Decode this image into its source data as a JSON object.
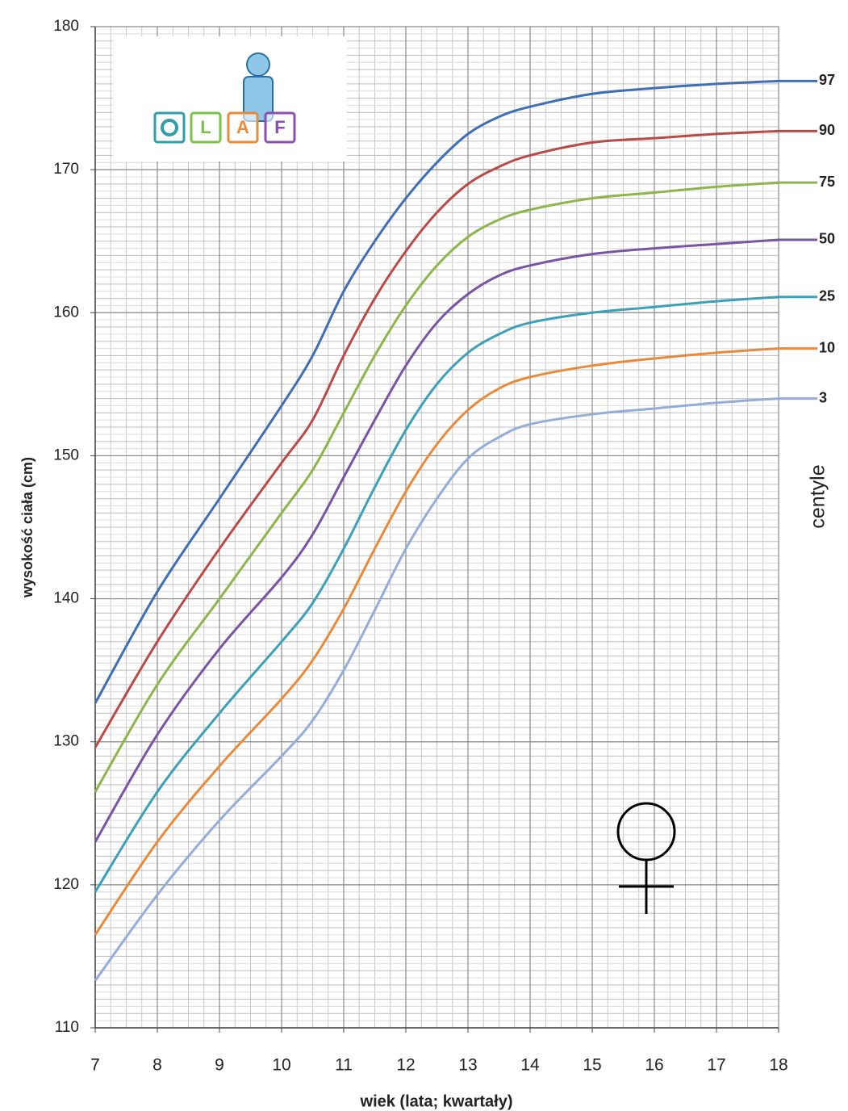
{
  "chart_data": {
    "type": "line",
    "x_label": "wiek (lata; kwartały)",
    "y_label": "wysokość ciała (cm)",
    "legend_title": "centyle",
    "legend_position": "right",
    "grid": true,
    "xlim": [
      7,
      18
    ],
    "xticks": [
      7,
      8,
      9,
      10,
      11,
      12,
      13,
      14,
      15,
      16,
      17,
      18
    ],
    "ylim": [
      110,
      180
    ],
    "yticks": [
      110,
      120,
      130,
      140,
      150,
      160,
      170,
      180
    ],
    "x": [
      7,
      8,
      9,
      10,
      10.5,
      11,
      11.5,
      12,
      12.5,
      13,
      13.5,
      14,
      15,
      16,
      17,
      18
    ],
    "series": [
      {
        "name": "97",
        "color": "#3f6eb5",
        "values": [
          132.7,
          140.5,
          147,
          153.5,
          157,
          161.5,
          165,
          168,
          170.5,
          172.5,
          173.7,
          174.4,
          175.3,
          175.7,
          176,
          176.2
        ]
      },
      {
        "name": "90",
        "color": "#b94a48",
        "values": [
          129.6,
          137,
          143.5,
          149.5,
          152.5,
          157,
          161,
          164.3,
          167,
          169,
          170.2,
          171,
          171.9,
          172.2,
          172.5,
          172.7
        ]
      },
      {
        "name": "75",
        "color": "#8db54a",
        "values": [
          126.5,
          134,
          140,
          146,
          149,
          153,
          157,
          160.5,
          163.3,
          165.3,
          166.5,
          167.2,
          168,
          168.4,
          168.8,
          169.1
        ]
      },
      {
        "name": "50",
        "color": "#7a54a4",
        "values": [
          123,
          130.5,
          136.5,
          141.5,
          144.5,
          148.5,
          152.5,
          156.3,
          159.3,
          161.3,
          162.6,
          163.3,
          164.1,
          164.5,
          164.8,
          165.1
        ]
      },
      {
        "name": "25",
        "color": "#3ba0b8",
        "values": [
          119.5,
          126.5,
          132,
          137,
          139.7,
          143.5,
          147.8,
          151.8,
          155,
          157.2,
          158.5,
          159.3,
          160,
          160.4,
          160.8,
          161.1
        ]
      },
      {
        "name": "10",
        "color": "#e98a3a",
        "values": [
          116.5,
          123,
          128.3,
          133,
          135.7,
          139.3,
          143.5,
          147.5,
          150.8,
          153.2,
          154.7,
          155.5,
          156.3,
          156.8,
          157.2,
          157.5
        ]
      },
      {
        "name": "3",
        "color": "#94add8",
        "values": [
          113.3,
          119.3,
          124.5,
          129,
          131.5,
          135,
          139.2,
          143.5,
          147,
          149.8,
          151.3,
          152.2,
          152.9,
          153.3,
          153.7,
          154
        ]
      }
    ]
  },
  "logo": {
    "letters": [
      "L",
      "A",
      "F"
    ]
  }
}
